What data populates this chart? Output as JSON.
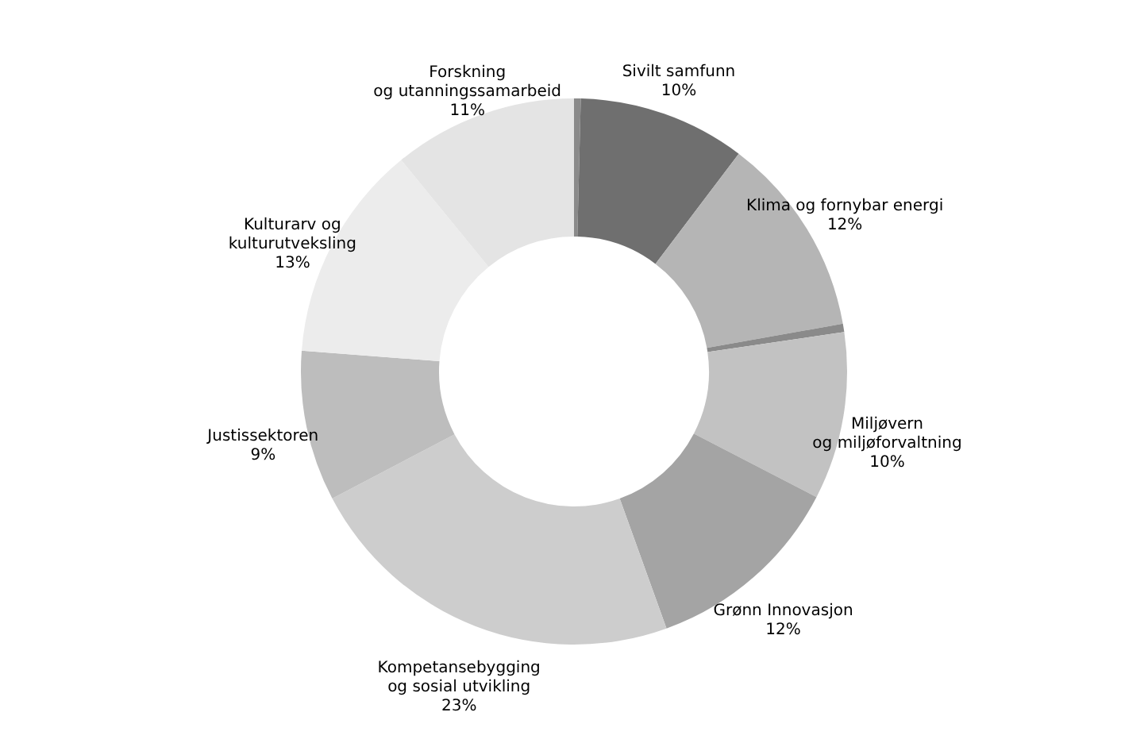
{
  "chart_data": {
    "type": "donut",
    "categories": [
      null,
      "Sivilt samfunn",
      "Klima og fornybar energi",
      null,
      "Miljøvern\nog miljøforvaltning",
      "Grønn Innovasjon",
      "Kompetansebygging\nog sosial utvikling",
      "Justissektoren",
      "Kulturarv og\nkulturutveksling",
      "Forskning\nog utanningssamarbeid"
    ],
    "values": [
      0.4,
      10,
      12,
      0.5,
      10,
      12,
      23,
      9,
      13,
      11
    ],
    "value_labels": [
      null,
      "10%",
      "12%",
      null,
      "10%",
      "12%",
      "23%",
      "9%",
      "13%",
      "11%"
    ],
    "colors": [
      "#8a8a8a",
      "#6f6f6f",
      "#b5b5b5",
      "#8a8a8a",
      "#c2c2c2",
      "#a4a4a4",
      "#cdcdcd",
      "#bdbdbd",
      "#ececec",
      "#e4e4e4"
    ],
    "legend": false
  }
}
